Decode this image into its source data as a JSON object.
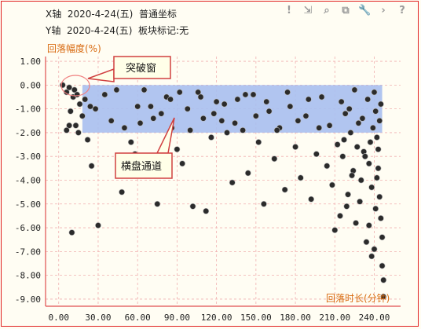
{
  "header": {
    "x_line": "X轴  2020-4-24(五)  普通坐标",
    "y_line": "Y轴  2020-4-24(五)  板块标记:无"
  },
  "toolbar": {
    "icons": [
      "exclamation-icon",
      "export-icon",
      "zoom-icon",
      "copy-icon",
      "wrench-icon",
      "chevron-right-icon",
      "help-icon"
    ],
    "glyphs": [
      "!",
      "⇲",
      "⌕",
      "⧉",
      "🔧",
      "›",
      "?"
    ]
  },
  "annotations": {
    "breakout": "突破窗",
    "channel": "横盘通道"
  },
  "colors": {
    "band": "#a8bff0",
    "point": "#2b2b2b",
    "grid": "#f0b0b0",
    "axis": "#e05050",
    "title": "#d86a10"
  },
  "chart_data": {
    "type": "scatter",
    "ylabel": "回落幅度(%)",
    "xlabel": "回落时长(分钟)",
    "xlim": [
      -10,
      260
    ],
    "ylim": [
      -9.3,
      1.2
    ],
    "x_ticks": [
      "0.00",
      "30.00",
      "60.00",
      "90.00",
      "120.00",
      "150.00",
      "180.00",
      "210.00",
      "240.00"
    ],
    "x_tick_values": [
      0,
      30,
      60,
      90,
      120,
      150,
      180,
      210,
      240
    ],
    "y_ticks": [
      "1.00",
      "0.00",
      "-1.00",
      "-2.00",
      "-3.00",
      "-4.00",
      "-5.00",
      "-6.00",
      "-7.00",
      "-8.00",
      "-9.00"
    ],
    "y_tick_values": [
      1,
      0,
      -1,
      -2,
      -3,
      -4,
      -5,
      -6,
      -7,
      -8,
      -9
    ],
    "band": {
      "x": [
        18,
        246
      ],
      "y": [
        -2.0,
        0.0
      ]
    },
    "grid": true,
    "points": [
      [
        3,
        0
      ],
      [
        6,
        -0.3
      ],
      [
        8,
        -0.1
      ],
      [
        9,
        -1.1
      ],
      [
        11,
        -0.5
      ],
      [
        12,
        -0.2
      ],
      [
        13,
        -1.7
      ],
      [
        14,
        -0.4
      ],
      [
        16,
        -0.8
      ],
      [
        18,
        -1.3
      ],
      [
        8,
        -1.7
      ],
      [
        6,
        -1.9
      ],
      [
        10,
        -6.2
      ],
      [
        22,
        -2.3
      ],
      [
        25,
        -3.4
      ],
      [
        30,
        -5.9
      ],
      [
        20,
        -0.6
      ],
      [
        28,
        -1.0
      ],
      [
        35,
        -0.4
      ],
      [
        40,
        -1.5
      ],
      [
        44,
        -0.2
      ],
      [
        50,
        -1.8
      ],
      [
        55,
        -2.4
      ],
      [
        48,
        -4.5
      ],
      [
        58,
        -2.9
      ],
      [
        62,
        -1.6
      ],
      [
        66,
        -3.2
      ],
      [
        70,
        -0.9
      ],
      [
        75,
        -5.0
      ],
      [
        78,
        -1.2
      ],
      [
        82,
        -0.5
      ],
      [
        86,
        -1.8
      ],
      [
        90,
        -2.7
      ],
      [
        94,
        -3.3
      ],
      [
        98,
        -1.0
      ],
      [
        102,
        -5.1
      ],
      [
        106,
        -0.3
      ],
      [
        110,
        -1.4
      ],
      [
        112,
        -5.3
      ],
      [
        116,
        -2.2
      ],
      [
        120,
        -0.7
      ],
      [
        124,
        -1.5
      ],
      [
        128,
        -2.0
      ],
      [
        132,
        -4.1
      ],
      [
        136,
        -0.6
      ],
      [
        140,
        -1.9
      ],
      [
        144,
        -3.7
      ],
      [
        148,
        -0.4
      ],
      [
        152,
        -2.4
      ],
      [
        156,
        -5.0
      ],
      [
        160,
        -1.1
      ],
      [
        164,
        -3.1
      ],
      [
        168,
        -1.8
      ],
      [
        172,
        -4.4
      ],
      [
        176,
        -0.9
      ],
      [
        180,
        -2.6
      ],
      [
        184,
        -3.9
      ],
      [
        188,
        -1.3
      ],
      [
        192,
        -4.8
      ],
      [
        196,
        -2.9
      ],
      [
        200,
        -0.5
      ],
      [
        204,
        -3.4
      ],
      [
        206,
        -1.7
      ],
      [
        208,
        -4.2
      ],
      [
        210,
        -6.1
      ],
      [
        212,
        -2.5
      ],
      [
        214,
        -5.5
      ],
      [
        216,
        -3.0
      ],
      [
        218,
        -1.2
      ],
      [
        220,
        -4.6
      ],
      [
        222,
        -2.0
      ],
      [
        224,
        -3.6
      ],
      [
        226,
        -5.8
      ],
      [
        228,
        -1.6
      ],
      [
        230,
        -4.0
      ],
      [
        232,
        -2.8
      ],
      [
        234,
        -6.6
      ],
      [
        236,
        -3.3
      ],
      [
        238,
        -7.2
      ],
      [
        240,
        -0.3
      ],
      [
        241,
        -1.1
      ],
      [
        242,
        -2.2
      ],
      [
        243,
        -3.5
      ],
      [
        244,
        -4.7
      ],
      [
        245,
        -5.6
      ],
      [
        246,
        -6.4
      ],
      [
        246,
        -7.6
      ],
      [
        247,
        -8.2
      ],
      [
        247,
        -8.9
      ],
      [
        245,
        -0.8
      ],
      [
        244,
        -1.5
      ],
      [
        243,
        -2.7
      ],
      [
        242,
        -3.9
      ],
      [
        241,
        -5.2
      ],
      [
        240,
        -6.9
      ],
      [
        239,
        -1.8
      ],
      [
        238,
        -4.3
      ],
      [
        237,
        -2.4
      ],
      [
        236,
        -5.9
      ],
      [
        235,
        -0.6
      ],
      [
        233,
        -3.0
      ],
      [
        231,
        -1.4
      ],
      [
        229,
        -4.9
      ],
      [
        227,
        -2.6
      ],
      [
        225,
        -0.2
      ],
      [
        223,
        -3.8
      ],
      [
        221,
        -1.0
      ],
      [
        219,
        -5.1
      ],
      [
        217,
        -2.3
      ],
      [
        215,
        -0.7
      ],
      [
        60,
        -0.9
      ],
      [
        65,
        -0.2
      ],
      [
        72,
        -1.4
      ],
      [
        85,
        -0.6
      ],
      [
        92,
        -0.3
      ],
      [
        100,
        -1.9
      ],
      [
        108,
        -0.5
      ],
      [
        118,
        -1.2
      ],
      [
        126,
        -0.8
      ],
      [
        134,
        -1.6
      ],
      [
        142,
        -0.4
      ],
      [
        150,
        -1.3
      ],
      [
        158,
        -0.7
      ],
      [
        166,
        -1.9
      ],
      [
        174,
        -0.3
      ],
      [
        182,
        -1.5
      ],
      [
        190,
        -0.6
      ],
      [
        198,
        -1.8
      ],
      [
        15,
        -2.0
      ],
      [
        24,
        -0.9
      ]
    ]
  }
}
